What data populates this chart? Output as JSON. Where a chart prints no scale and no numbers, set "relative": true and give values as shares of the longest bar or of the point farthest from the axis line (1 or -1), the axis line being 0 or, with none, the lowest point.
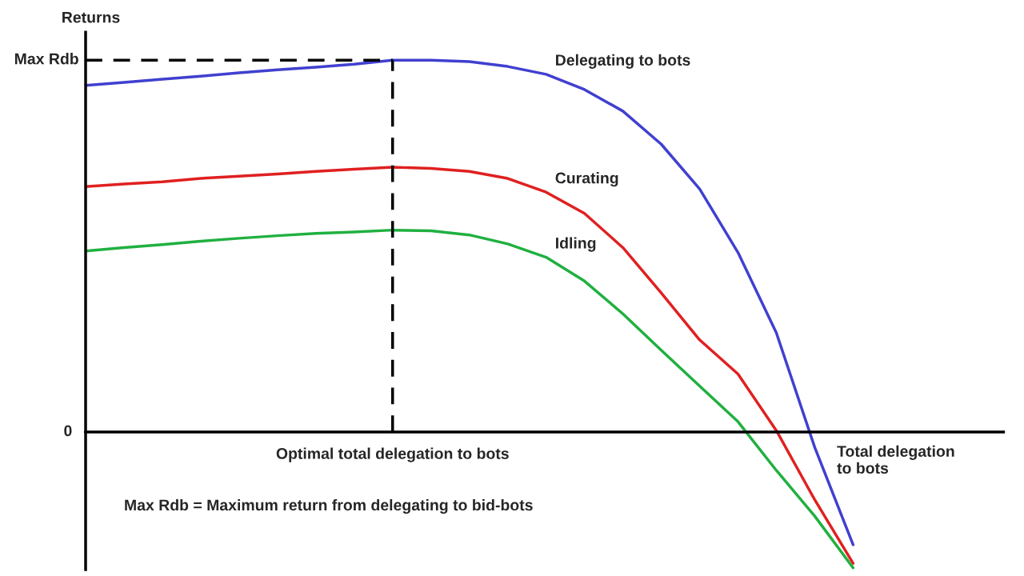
{
  "chart_data": {
    "type": "line",
    "relative": true,
    "ylabel": "Returns",
    "xlabel": "Total delegation\nto bots",
    "categories": [
      null,
      null,
      null,
      null,
      null,
      null,
      null,
      null,
      null,
      null,
      null,
      null,
      null,
      null,
      null,
      null,
      null,
      null,
      null,
      null,
      null
    ],
    "marker": "none",
    "line_style": "solid",
    "ref_lines": [
      {
        "axis": "y",
        "value": 1,
        "label": "Max Rdb",
        "color": "#000000",
        "line_style": "dashed"
      },
      {
        "axis": "x",
        "label": "Optimal total delegation to bots",
        "color": "#000000",
        "line_style": "dashed"
      }
    ],
    "series": [
      {
        "name": "Delegating to bots",
        "color": "#4040d0",
        "values": [
          0.932,
          0.94,
          0.949,
          0.957,
          0.966,
          0.974,
          0.981,
          0.989,
          1.0,
          1.0,
          0.996,
          0.983,
          0.962,
          0.921,
          0.863,
          0.774,
          0.654,
          0.483,
          0.267,
          -0.041,
          -0.303
        ]
      },
      {
        "name": "Curating",
        "color": "#e02020",
        "values": [
          0.66,
          0.667,
          0.673,
          0.682,
          0.688,
          0.694,
          0.701,
          0.707,
          0.712,
          0.709,
          0.701,
          0.682,
          0.645,
          0.588,
          0.496,
          0.374,
          0.248,
          0.156,
          0.004,
          -0.182,
          -0.353
        ]
      },
      {
        "name": "Idling",
        "color": "#20b040",
        "values": [
          0.487,
          0.496,
          0.504,
          0.513,
          0.521,
          0.528,
          0.534,
          0.538,
          0.543,
          0.541,
          0.53,
          0.506,
          0.47,
          0.406,
          0.318,
          0.22,
          0.124,
          0.028,
          -0.103,
          -0.226,
          -0.365
        ]
      }
    ],
    "annotations": [
      "0",
      "Max Rdb = Maximum return from delegating to bid-bots"
    ]
  }
}
